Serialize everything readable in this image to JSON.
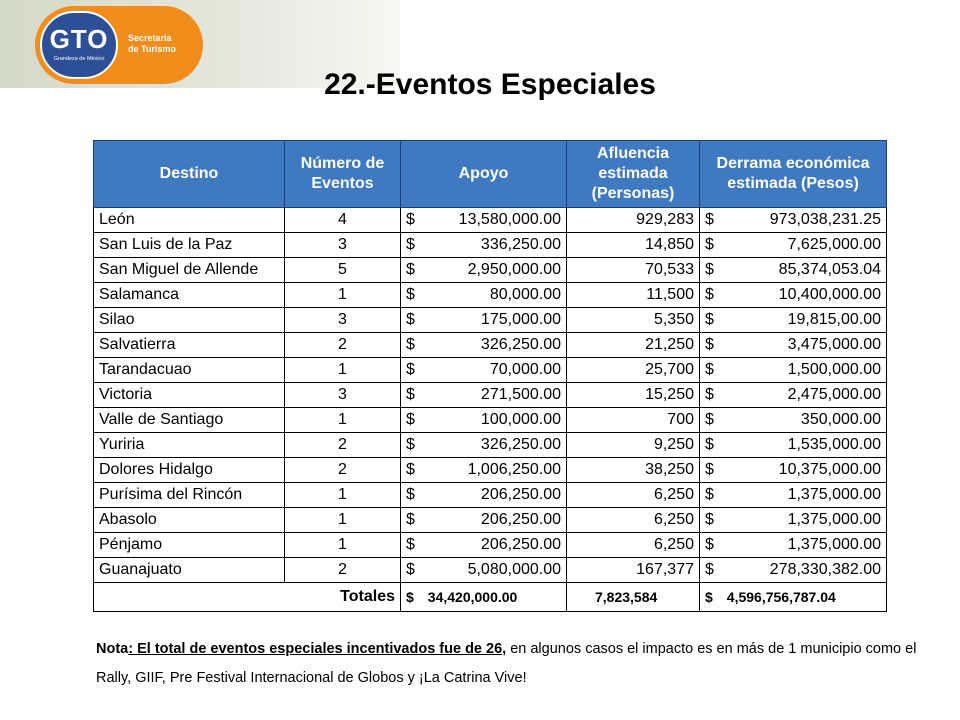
{
  "logo": {
    "mark": "GTO",
    "tagline": "Grandeza de México",
    "line1": "Secretaría",
    "line2": "de Turismo"
  },
  "title": "22.-Eventos Especiales",
  "table": {
    "headers": [
      "Destino",
      "Número de Eventos",
      "Apoyo",
      "Afluencia estimada (Personas)",
      "Derrama económica estimada (Pesos)"
    ],
    "currency": "$",
    "rows": [
      {
        "destino": "León",
        "eventos": "4",
        "apoyo": "13,580,000.00",
        "afluencia": "929,283",
        "derrama": "973,038,231.25"
      },
      {
        "destino": "San Luis de la Paz",
        "eventos": "3",
        "apoyo": "336,250.00",
        "afluencia": "14,850",
        "derrama": "7,625,000.00"
      },
      {
        "destino": "San Miguel de Allende",
        "eventos": "5",
        "apoyo": "2,950,000.00",
        "afluencia": "70,533",
        "derrama": "85,374,053.04"
      },
      {
        "destino": "Salamanca",
        "eventos": "1",
        "apoyo": "80,000.00",
        "afluencia": "11,500",
        "derrama": "10,400,000.00"
      },
      {
        "destino": "Silao",
        "eventos": "3",
        "apoyo": "175,000.00",
        "afluencia": "5,350",
        "derrama": "19,815,00.00"
      },
      {
        "destino": "Salvatierra",
        "eventos": "2",
        "apoyo": "326,250.00",
        "afluencia": "21,250",
        "derrama": "3,475,000.00"
      },
      {
        "destino": "Tarandacuao",
        "eventos": "1",
        "apoyo": "70,000.00",
        "afluencia": "25,700",
        "derrama": "1,500,000.00"
      },
      {
        "destino": "Victoria",
        "eventos": "3",
        "apoyo": "271,500.00",
        "afluencia": "15,250",
        "derrama": "2,475,000.00"
      },
      {
        "destino": "Valle de Santiago",
        "eventos": "1",
        "apoyo": "100,000.00",
        "afluencia": "700",
        "derrama": "350,000.00"
      },
      {
        "destino": "Yuriria",
        "eventos": "2",
        "apoyo": "326,250.00",
        "afluencia": "9,250",
        "derrama": "1,535,000.00"
      },
      {
        "destino": "Dolores Hidalgo",
        "eventos": "2",
        "apoyo": "1,006,250.00",
        "afluencia": "38,250",
        "derrama": "10,375,000.00"
      },
      {
        "destino": "Purísima del Rincón",
        "eventos": "1",
        "apoyo": "206,250.00",
        "afluencia": "6,250",
        "derrama": "1,375,000.00"
      },
      {
        "destino": "Abasolo",
        "eventos": "1",
        "apoyo": "206,250.00",
        "afluencia": "6,250",
        "derrama": "1,375,000.00"
      },
      {
        "destino": "Pénjamo",
        "eventos": "1",
        "apoyo": "206,250.00",
        "afluencia": "6,250",
        "derrama": "1,375,000.00"
      },
      {
        "destino": "Guanajuato",
        "eventos": "2",
        "apoyo": "5,080,000.00",
        "afluencia": "167,377",
        "derrama": "278,330,382.00"
      }
    ],
    "totals": {
      "label": "Totales",
      "apoyo": "34,420,000.00",
      "afluencia": "7,823,584",
      "derrama": "4,596,756,787.04"
    }
  },
  "note": {
    "prefix": "Nota",
    "highlight": ": El total de eventos especiales incentivados fue de 26,",
    "rest": " en algunos casos el impacto es en más de 1 municipio como el Rally, GIIF, Pre Festival Internacional de Globos y ¡La Catrina Vive!"
  }
}
